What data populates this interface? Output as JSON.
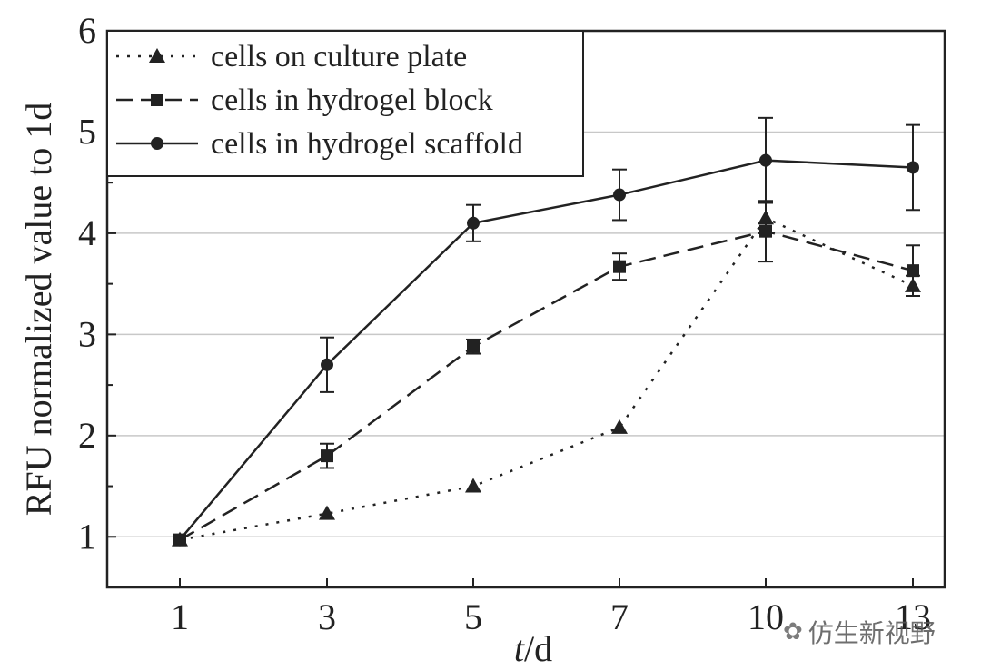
{
  "chart_data": {
    "type": "line",
    "xlabel_italic": "t",
    "xlabel_unit": "/d",
    "ylabel": "RFU normalized value to 1d",
    "categories": [
      "1",
      "3",
      "5",
      "7",
      "10",
      "13"
    ],
    "ylim": [
      0.5,
      6
    ],
    "yticks": [
      1,
      2,
      3,
      4,
      5,
      6
    ],
    "grid": true,
    "legend_position": "top-left",
    "series": [
      {
        "name": "cells on culture plate",
        "style": "dotted",
        "marker": "triangle",
        "values": [
          0.97,
          1.23,
          1.5,
          2.08,
          4.15,
          3.48
        ],
        "errors": [
          0.03,
          0.04,
          0.05,
          0.05,
          0.15,
          0.1
        ]
      },
      {
        "name": "cells in hydrogel block",
        "style": "dashed",
        "marker": "square",
        "values": [
          0.97,
          1.8,
          2.88,
          3.67,
          4.02,
          3.63
        ],
        "errors": [
          0.03,
          0.12,
          0.07,
          0.13,
          0.3,
          0.25
        ]
      },
      {
        "name": "cells in hydrogel scaffold",
        "style": "solid",
        "marker": "circle",
        "values": [
          0.97,
          2.7,
          4.1,
          4.38,
          4.72,
          4.65
        ],
        "errors": [
          0.03,
          0.27,
          0.18,
          0.25,
          0.42,
          0.42
        ]
      }
    ]
  },
  "watermark": {
    "icon": "wechat-icon",
    "text": "仿生新视野"
  }
}
